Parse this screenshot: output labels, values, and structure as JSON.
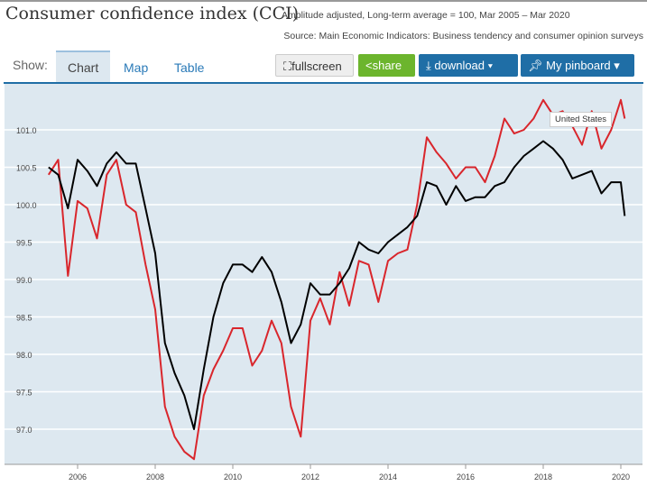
{
  "header": {
    "title": "Consumer confidence index (CCI)",
    "subtitle": "Amplitude adjusted, Long-term average = 100, Mar 2005 – Mar 2020",
    "source": "Source: Main Economic Indicators: Business tendency and consumer opinion surveys"
  },
  "toolbar": {
    "show_label": "Show:",
    "tabs": [
      "Chart",
      "Map",
      "Table"
    ],
    "active_tab": "Chart",
    "fullscreen": "fullscreen",
    "share": "share",
    "download": "download ▾",
    "pinboard": "My pinboard ▾",
    "fullscreen_icon": "expand-icon",
    "share_icon": "share-icon",
    "download_icon": "download-icon",
    "pinboard_icon": "pin-icon"
  },
  "tooltip": {
    "label": "United States"
  },
  "chart_data": {
    "type": "line",
    "title": "",
    "xlabel": "",
    "ylabel": "",
    "grid": true,
    "xlim": [
      2004.5,
      2020.85
    ],
    "ylim": [
      96.4,
      101.6
    ],
    "xticks": [
      "2006",
      "2008",
      "2010",
      "2012",
      "2014",
      "2016",
      "2018",
      "2020"
    ],
    "yticks": [
      "97.0",
      "97.5",
      "98.0",
      "98.5",
      "99.0",
      "99.5",
      "100.0",
      "100.5",
      "101.0"
    ],
    "x": [
      2005.25,
      2005.5,
      2005.75,
      2006,
      2006.25,
      2006.5,
      2006.75,
      2007,
      2007.25,
      2007.5,
      2007.75,
      2008,
      2008.25,
      2008.5,
      2008.75,
      2009,
      2009.25,
      2009.5,
      2009.75,
      2010,
      2010.25,
      2010.5,
      2010.75,
      2011,
      2011.25,
      2011.5,
      2011.75,
      2012,
      2012.25,
      2012.5,
      2012.75,
      2013,
      2013.25,
      2013.5,
      2013.75,
      2014,
      2014.25,
      2014.5,
      2014.75,
      2015,
      2015.25,
      2015.5,
      2015.75,
      2016,
      2016.25,
      2016.5,
      2016.75,
      2017,
      2017.25,
      2017.5,
      2017.75,
      2018,
      2018.25,
      2018.5,
      2018.75,
      2019,
      2019.25,
      2019.5,
      2019.75,
      2020,
      2020.1
    ],
    "series": [
      {
        "name": "United States",
        "color": "#d9262c",
        "values": [
          100.4,
          100.6,
          99.05,
          100.05,
          99.95,
          99.55,
          100.4,
          100.6,
          100.0,
          99.9,
          99.2,
          98.6,
          97.3,
          96.9,
          96.7,
          96.6,
          97.45,
          97.8,
          98.05,
          98.35,
          98.35,
          97.85,
          98.05,
          98.45,
          98.15,
          97.3,
          96.9,
          98.45,
          98.75,
          98.4,
          99.1,
          98.65,
          99.25,
          99.2,
          98.7,
          99.25,
          99.35,
          99.4,
          100.0,
          100.9,
          100.7,
          100.55,
          100.35,
          100.5,
          100.5,
          100.3,
          100.65,
          101.15,
          100.95,
          101.0,
          101.15,
          101.4,
          101.2,
          101.25,
          101.05,
          100.8,
          101.25,
          100.75,
          101.0,
          101.4,
          101.15
        ]
      },
      {
        "color": "#000000",
        "values": [
          100.5,
          100.4,
          99.95,
          100.6,
          100.45,
          100.25,
          100.55,
          100.7,
          100.55,
          100.55,
          99.95,
          99.35,
          98.15,
          97.75,
          97.45,
          97.0,
          97.8,
          98.5,
          98.95,
          99.2,
          99.2,
          99.1,
          99.3,
          99.1,
          98.7,
          98.15,
          98.4,
          98.95,
          98.8,
          98.8,
          98.95,
          99.15,
          99.5,
          99.4,
          99.35,
          99.5,
          99.6,
          99.7,
          99.85,
          100.3,
          100.25,
          100.0,
          100.25,
          100.05,
          100.1,
          100.1,
          100.25,
          100.3,
          100.5,
          100.65,
          100.75,
          100.85,
          100.75,
          100.6,
          100.35,
          100.4,
          100.45,
          100.15,
          100.3,
          100.3,
          99.85
        ]
      }
    ]
  }
}
